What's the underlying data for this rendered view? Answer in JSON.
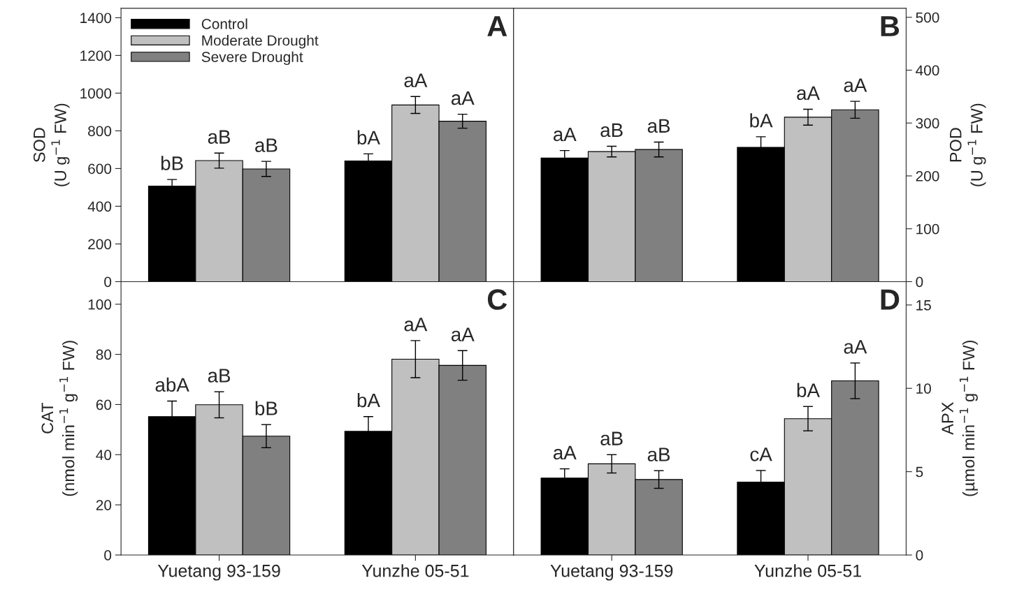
{
  "chart_data": [
    {
      "type": "bar",
      "categories": [
        null,
        null
      ],
      "ylabel": "SOD\n(U g$^{−1}$ FW)",
      "ylim": [
        0,
        1450
      ],
      "yticks": [
        0,
        200,
        400,
        600,
        800,
        1000,
        1200,
        1400
      ],
      "tick_labels": "y",
      "legend": "top left",
      "annotations": [
        "A"
      ],
      "series": [
        {
          "name": "Control",
          "color": "#000000",
          "values": [
            507,
            640
          ],
          "errors": [
            35,
            38
          ],
          "value_labels": [
            "bB",
            "bA"
          ]
        },
        {
          "name": "Moderate Drought",
          "color": "#c0c0c0",
          "values": [
            642,
            937
          ],
          "errors": [
            40,
            45
          ],
          "value_labels": [
            "aB",
            "aA"
          ]
        },
        {
          "name": "Severe Drought",
          "color": "#808080",
          "values": [
            598,
            851
          ],
          "errors": [
            40,
            37
          ],
          "value_labels": [
            "aB",
            "aA"
          ]
        }
      ]
    },
    {
      "type": "bar",
      "categories": [
        null,
        null
      ],
      "ylabel": "POD\n(U g$^{−1}$ FW)",
      "ylim": [
        0,
        517
      ],
      "yticks": [
        0,
        100,
        200,
        300,
        400,
        500
      ],
      "tick_labels": "y",
      "annotations": [
        "B"
      ],
      "series": [
        {
          "color": "#000000",
          "values": [
            234,
            254
          ],
          "errors": [
            14,
            20
          ],
          "value_labels": [
            "aA",
            "bA"
          ]
        },
        {
          "color": "#c0c0c0",
          "values": [
            246,
            311
          ],
          "errors": [
            10,
            15
          ],
          "value_labels": [
            "aB",
            "aA"
          ]
        },
        {
          "color": "#808080",
          "values": [
            250,
            325
          ],
          "errors": [
            14,
            16
          ],
          "value_labels": [
            "aB",
            "aA"
          ]
        }
      ]
    },
    {
      "type": "bar",
      "categories": [
        "Yuetang 93-159",
        "Yunzhe 05-51"
      ],
      "ylabel": "CAT\n(nmol min$^{−1}$ g$^{−1}$ FW)",
      "ylim": [
        0,
        109
      ],
      "yticks": [
        0,
        20,
        40,
        60,
        80,
        100
      ],
      "annotations": [
        "C"
      ],
      "series": [
        {
          "color": "#000000",
          "values": [
            55.2,
            49.3
          ],
          "errors": [
            6.2,
            5.9
          ],
          "value_labels": [
            "abA",
            "bA"
          ]
        },
        {
          "color": "#c0c0c0",
          "values": [
            59.9,
            78.1
          ],
          "errors": [
            5.2,
            7.4
          ],
          "value_labels": [
            "aB",
            "aA"
          ]
        },
        {
          "color": "#808080",
          "values": [
            47.4,
            75.6
          ],
          "errors": [
            4.6,
            5.9
          ],
          "value_labels": [
            "bB",
            "aA"
          ]
        }
      ]
    },
    {
      "type": "bar",
      "categories": [
        "Yuetang 93-159",
        "Yunzhe 05-51"
      ],
      "ylabel": "APX\n(µmol min$^{−1}$ g$^{−1}$ FW)",
      "ylim": [
        0,
        16.4
      ],
      "yticks": [
        0,
        5,
        10,
        15
      ],
      "annotations": [
        "D"
      ],
      "series": [
        {
          "color": "#000000",
          "values": [
            4.62,
            4.37
          ],
          "errors": [
            0.55,
            0.7
          ],
          "value_labels": [
            "aA",
            "cA"
          ]
        },
        {
          "color": "#c0c0c0",
          "values": [
            5.47,
            8.18
          ],
          "errors": [
            0.55,
            0.73
          ],
          "value_labels": [
            "aB",
            "bA"
          ]
        },
        {
          "color": "#808080",
          "values": [
            4.53,
            10.45
          ],
          "errors": [
            0.53,
            1.07
          ],
          "value_labels": [
            "aB",
            "aA"
          ]
        }
      ]
    }
  ]
}
